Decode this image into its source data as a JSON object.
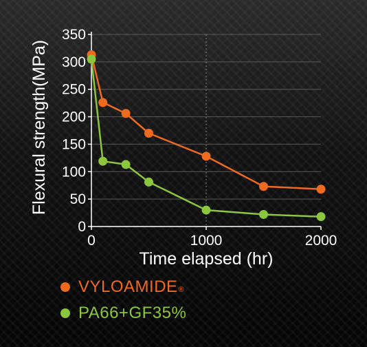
{
  "chart_data": {
    "type": "line",
    "xlabel": "Time elapsed (hr)",
    "ylabel": "Flexural strength(MPa)",
    "xlim": [
      0,
      2000
    ],
    "ylim": [
      0,
      350
    ],
    "x_ticks": [
      "0",
      "1000",
      "2000"
    ],
    "y_ticks": [
      "0",
      "50",
      "100",
      "150",
      "200",
      "250",
      "300",
      "350"
    ],
    "grid": "horizontal lines at each y tick, dashed vertical line at x=1000",
    "legend_position": "bottom-left below chart",
    "series": [
      {
        "name": "VYLOAMIDE",
        "name_mark": "®",
        "color": "#ee6a1f",
        "x": [
          0,
          100,
          300,
          500,
          1000,
          1500,
          2000
        ],
        "y": [
          313,
          226,
          206,
          170,
          128,
          73,
          68
        ]
      },
      {
        "name": "PA66+GF35%",
        "color": "#8cc63f",
        "x": [
          0,
          100,
          300,
          500,
          1000,
          1500,
          2000
        ],
        "y": [
          305,
          119,
          113,
          81,
          30,
          22,
          18
        ]
      }
    ]
  }
}
